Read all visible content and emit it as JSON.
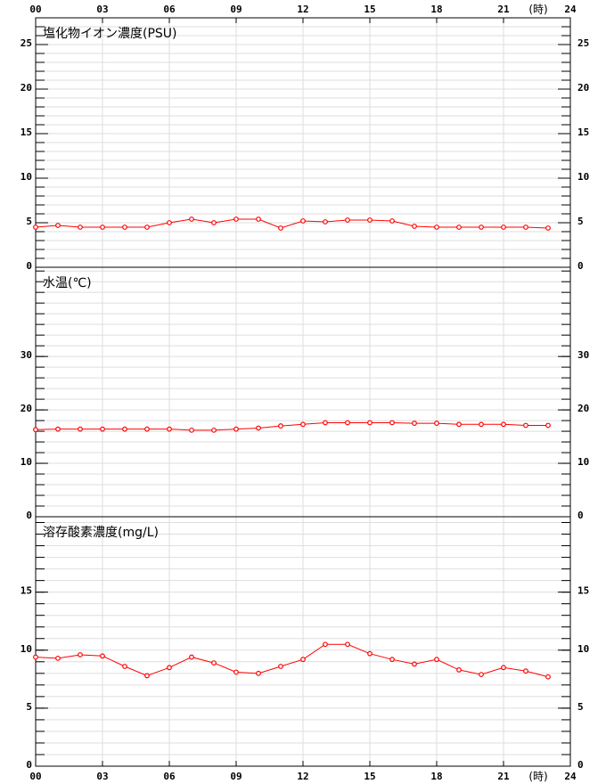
{
  "chart_data": [
    {
      "type": "line",
      "title": "塩化物イオン濃度(PSU)",
      "xlabel": "(時)",
      "x": [
        0,
        1,
        2,
        3,
        4,
        5,
        6,
        7,
        8,
        9,
        10,
        11,
        12,
        13,
        14,
        15,
        16,
        17,
        18,
        19,
        20,
        21,
        22,
        23
      ],
      "xlim": [
        0,
        24
      ],
      "xticks": [
        {
          "value": 0,
          "label": "00"
        },
        {
          "value": 3,
          "label": "03"
        },
        {
          "value": 6,
          "label": "06"
        },
        {
          "value": 9,
          "label": "09"
        },
        12,
        15,
        18,
        21,
        24
      ],
      "ylim": [
        0,
        28
      ],
      "yticks": [
        0,
        5,
        10,
        15,
        20,
        25
      ],
      "minor_step": 1,
      "grid": true,
      "series": [
        {
          "color": "#ff0000",
          "values": [
            4.5,
            4.7,
            4.5,
            4.5,
            4.5,
            4.5,
            5.0,
            5.4,
            5.0,
            5.4,
            5.4,
            4.4,
            5.2,
            5.1,
            5.3,
            5.3,
            5.2,
            4.6,
            4.5,
            4.5,
            4.5,
            4.5,
            4.5,
            4.4
          ]
        }
      ]
    },
    {
      "type": "line",
      "title": "水温(℃)",
      "x": [
        0,
        1,
        2,
        3,
        4,
        5,
        6,
        7,
        8,
        9,
        10,
        11,
        12,
        13,
        14,
        15,
        16,
        17,
        18,
        19,
        20,
        21,
        22,
        23
      ],
      "xlim": [
        0,
        24
      ],
      "xticks": [
        {
          "value": 0,
          "label": "00"
        },
        {
          "value": 3,
          "label": "03"
        },
        {
          "value": 6,
          "label": "06"
        },
        {
          "value": 9,
          "label": "09"
        },
        12,
        15,
        18,
        21,
        24
      ],
      "ylim": [
        0,
        46.7
      ],
      "yticks": [
        0,
        10,
        20,
        30
      ],
      "minor_step": 2,
      "grid": true,
      "series": [
        {
          "color": "#ff0000",
          "values": [
            16.3,
            16.4,
            16.4,
            16.4,
            16.4,
            16.4,
            16.4,
            16.2,
            16.2,
            16.4,
            16.6,
            17.0,
            17.3,
            17.6,
            17.6,
            17.6,
            17.6,
            17.5,
            17.5,
            17.3,
            17.3,
            17.3,
            17.1,
            17.1
          ]
        }
      ]
    },
    {
      "type": "line",
      "title": "溶存酸素濃度(mg/L)",
      "xlabel": "(時)",
      "x": [
        0,
        1,
        2,
        3,
        4,
        5,
        6,
        7,
        8,
        9,
        10,
        11,
        12,
        13,
        14,
        15,
        16,
        17,
        18,
        19,
        20,
        21,
        22,
        23
      ],
      "xlim": [
        0,
        24
      ],
      "xticks": [
        {
          "value": 0,
          "label": "00"
        },
        {
          "value": 3,
          "label": "03"
        },
        {
          "value": 6,
          "label": "06"
        },
        {
          "value": 9,
          "label": "09"
        },
        12,
        15,
        18,
        21,
        24
      ],
      "ylim": [
        0,
        21.5
      ],
      "yticks": [
        0,
        5,
        10,
        15
      ],
      "minor_step": 1,
      "grid": true,
      "series": [
        {
          "color": "#ff0000",
          "values": [
            9.4,
            9.3,
            9.6,
            9.5,
            8.6,
            7.8,
            8.5,
            9.4,
            8.9,
            8.1,
            8.0,
            8.6,
            9.2,
            10.5,
            10.5,
            9.7,
            9.2,
            8.8,
            9.2,
            8.3,
            7.9,
            8.5,
            8.2,
            7.7
          ]
        }
      ]
    }
  ]
}
